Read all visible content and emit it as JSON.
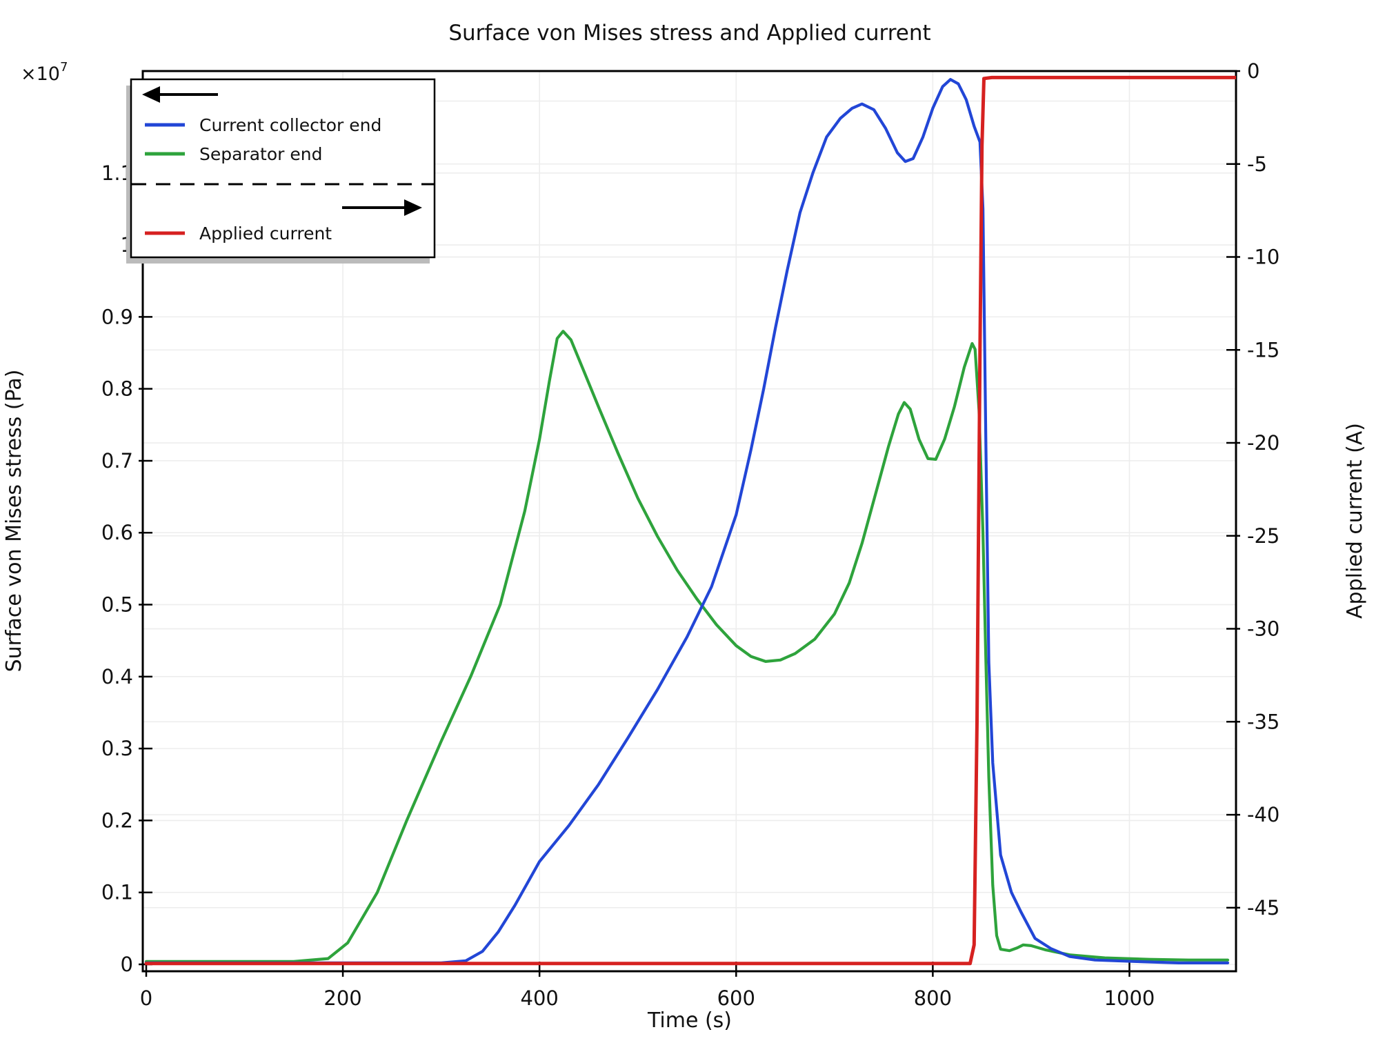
{
  "title": "Surface von Mises stress and Applied current",
  "axes": {
    "x": {
      "label": "Time (s)",
      "ticks": [
        0,
        200,
        400,
        600,
        800,
        1000
      ],
      "range": [
        -3.5,
        1108.4
      ]
    },
    "y_left": {
      "label": "Surface von Mises stress (Pa)",
      "multiplier_base": "×10",
      "multiplier_exp": "7",
      "ticks": [
        {
          "v": 0.0,
          "label": "0"
        },
        {
          "v": 0.1,
          "label": "0.1"
        },
        {
          "v": 0.2,
          "label": "0.2"
        },
        {
          "v": 0.3,
          "label": "0.3"
        },
        {
          "v": 0.4,
          "label": "0.4"
        },
        {
          "v": 0.5,
          "label": "0.5"
        },
        {
          "v": 0.6,
          "label": "0.6"
        },
        {
          "v": 0.7,
          "label": "0.7"
        },
        {
          "v": 0.8,
          "label": "0.8"
        },
        {
          "v": 0.9,
          "label": "0.9"
        },
        {
          "v": 1.0,
          "label": "1"
        },
        {
          "v": 1.1,
          "label": "1.1"
        },
        {
          "v": 1.2,
          "label": ""
        }
      ],
      "range": [
        -0.0096,
        1.2417
      ]
    },
    "y_right": {
      "label": "Applied current (A)",
      "ticks": [
        0,
        -5,
        -10,
        -15,
        -20,
        -25,
        -30,
        -35,
        -40,
        -45
      ],
      "range": [
        -48.42,
        0
      ]
    }
  },
  "legend": {
    "items": [
      {
        "label": "Current collector end",
        "color": "#2246d6",
        "axis": "left"
      },
      {
        "label": "Separator end",
        "color": "#2ea33c",
        "axis": "left"
      },
      {
        "label": "Applied current",
        "color": "#d62120",
        "axis": "right"
      }
    ]
  },
  "colors": {
    "blue": "#2246d6",
    "green": "#2ea33c",
    "red": "#d62120",
    "grid": "#ededed",
    "frame": "#000000",
    "legend_shadow": "#bbbbbb",
    "background": "#ffffff"
  },
  "chart_data": {
    "type": "line",
    "title": "Surface von Mises stress and Applied current",
    "xlabel": "Time (s)",
    "ylabel_left": "Surface von Mises stress (Pa), ×10^7",
    "ylabel_right": "Applied current (A)",
    "x_range": [
      -3.5,
      1108.4
    ],
    "y_left_range": [
      -0.0096,
      1.2417
    ],
    "y_right_range": [
      -48.42,
      0
    ],
    "grid": true,
    "legend_position": "top-left",
    "series": [
      {
        "name": "Current collector end",
        "axis": "left",
        "units": "1e7 Pa",
        "color": "#2246d6",
        "points": [
          [
            0,
            0.002
          ],
          [
            150,
            0.002
          ],
          [
            300,
            0.002
          ],
          [
            325,
            0.005
          ],
          [
            342,
            0.018
          ],
          [
            358,
            0.045
          ],
          [
            375,
            0.082
          ],
          [
            400,
            0.143
          ],
          [
            430,
            0.193
          ],
          [
            460,
            0.25
          ],
          [
            490,
            0.315
          ],
          [
            520,
            0.382
          ],
          [
            550,
            0.455
          ],
          [
            575,
            0.525
          ],
          [
            600,
            0.625
          ],
          [
            615,
            0.715
          ],
          [
            628,
            0.8
          ],
          [
            640,
            0.885
          ],
          [
            652,
            0.965
          ],
          [
            665,
            1.045
          ],
          [
            678,
            1.1
          ],
          [
            692,
            1.15
          ],
          [
            706,
            1.176
          ],
          [
            718,
            1.19
          ],
          [
            728,
            1.196
          ],
          [
            740,
            1.188
          ],
          [
            752,
            1.162
          ],
          [
            764,
            1.128
          ],
          [
            772,
            1.116
          ],
          [
            780,
            1.12
          ],
          [
            790,
            1.15
          ],
          [
            800,
            1.19
          ],
          [
            810,
            1.22
          ],
          [
            818,
            1.23
          ],
          [
            826,
            1.224
          ],
          [
            834,
            1.202
          ],
          [
            842,
            1.165
          ],
          [
            848,
            1.143
          ],
          [
            851,
            1.05
          ],
          [
            854,
            0.72
          ],
          [
            857,
            0.42
          ],
          [
            861,
            0.28
          ],
          [
            869,
            0.152
          ],
          [
            880,
            0.1
          ],
          [
            890,
            0.072
          ],
          [
            904,
            0.036
          ],
          [
            920,
            0.022
          ],
          [
            939,
            0.011
          ],
          [
            965,
            0.006
          ],
          [
            1005,
            0.004
          ],
          [
            1050,
            0.002
          ],
          [
            1100,
            0.002
          ]
        ]
      },
      {
        "name": "Separator end",
        "axis": "left",
        "units": "1e7 Pa",
        "color": "#2ea33c",
        "points": [
          [
            0,
            0.004
          ],
          [
            150,
            0.004
          ],
          [
            185,
            0.008
          ],
          [
            205,
            0.03
          ],
          [
            235,
            0.1
          ],
          [
            265,
            0.2
          ],
          [
            300,
            0.31
          ],
          [
            330,
            0.4
          ],
          [
            360,
            0.5
          ],
          [
            385,
            0.63
          ],
          [
            400,
            0.73
          ],
          [
            410,
            0.81
          ],
          [
            418,
            0.87
          ],
          [
            424,
            0.88
          ],
          [
            432,
            0.868
          ],
          [
            445,
            0.825
          ],
          [
            460,
            0.775
          ],
          [
            480,
            0.71
          ],
          [
            500,
            0.648
          ],
          [
            520,
            0.595
          ],
          [
            540,
            0.548
          ],
          [
            560,
            0.508
          ],
          [
            580,
            0.472
          ],
          [
            600,
            0.443
          ],
          [
            615,
            0.428
          ],
          [
            630,
            0.421
          ],
          [
            645,
            0.423
          ],
          [
            660,
            0.432
          ],
          [
            680,
            0.452
          ],
          [
            700,
            0.487
          ],
          [
            715,
            0.53
          ],
          [
            728,
            0.585
          ],
          [
            742,
            0.655
          ],
          [
            755,
            0.72
          ],
          [
            765,
            0.765
          ],
          [
            771,
            0.781
          ],
          [
            777,
            0.772
          ],
          [
            786,
            0.73
          ],
          [
            795,
            0.703
          ],
          [
            803,
            0.702
          ],
          [
            812,
            0.73
          ],
          [
            822,
            0.775
          ],
          [
            832,
            0.83
          ],
          [
            840,
            0.863
          ],
          [
            843,
            0.855
          ],
          [
            847,
            0.77
          ],
          [
            851,
            0.6
          ],
          [
            854,
            0.42
          ],
          [
            857,
            0.26
          ],
          [
            861,
            0.11
          ],
          [
            865,
            0.04
          ],
          [
            869,
            0.021
          ],
          [
            878,
            0.019
          ],
          [
            886,
            0.023
          ],
          [
            892,
            0.027
          ],
          [
            900,
            0.026
          ],
          [
            915,
            0.02
          ],
          [
            940,
            0.013
          ],
          [
            975,
            0.009
          ],
          [
            1020,
            0.007
          ],
          [
            1060,
            0.006
          ],
          [
            1100,
            0.006
          ]
        ]
      },
      {
        "name": "Applied current",
        "axis": "right",
        "units": "A",
        "color": "#d62120",
        "points": [
          [
            0,
            -48
          ],
          [
            200,
            -48
          ],
          [
            400,
            -48
          ],
          [
            600,
            -48
          ],
          [
            800,
            -48
          ],
          [
            838,
            -48
          ],
          [
            842,
            -47
          ],
          [
            845,
            -35
          ],
          [
            848,
            -15
          ],
          [
            850,
            -4
          ],
          [
            852,
            -0.4
          ],
          [
            860,
            -0.35
          ],
          [
            1000,
            -0.35
          ],
          [
            1108,
            -0.35
          ]
        ]
      }
    ]
  }
}
